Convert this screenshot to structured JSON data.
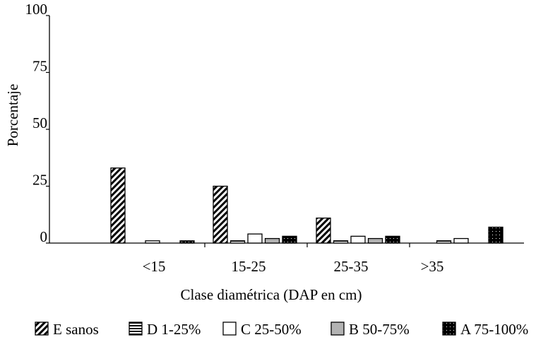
{
  "chart_data": {
    "type": "bar",
    "categories": [
      "<15",
      "15-25",
      "25-35",
      ">35"
    ],
    "series": [
      {
        "name": "E sanos",
        "pattern": "hatch",
        "values": [
          33,
          25,
          11,
          0
        ]
      },
      {
        "name": "D 1-25%",
        "pattern": "hstripes",
        "values": [
          0,
          1,
          1,
          1
        ]
      },
      {
        "name": "C 25-50%",
        "pattern": "white",
        "values": [
          1,
          4,
          3,
          2
        ]
      },
      {
        "name": "B 50-75%",
        "pattern": "checker",
        "values": [
          0,
          2,
          2,
          0
        ]
      },
      {
        "name": "A 75-100%",
        "pattern": "dots",
        "values": [
          1,
          3,
          3,
          7
        ]
      }
    ],
    "xlabel": "Clase diamétrica (DAP en cm)",
    "ylabel": "Porcentaje",
    "ylim": [
      0,
      100
    ],
    "yticks": [
      0,
      25,
      50,
      75,
      100
    ],
    "legend_position": "bottom",
    "grid": false,
    "colors": {
      "ink": "#000000",
      "fill": "#ffffff"
    }
  }
}
